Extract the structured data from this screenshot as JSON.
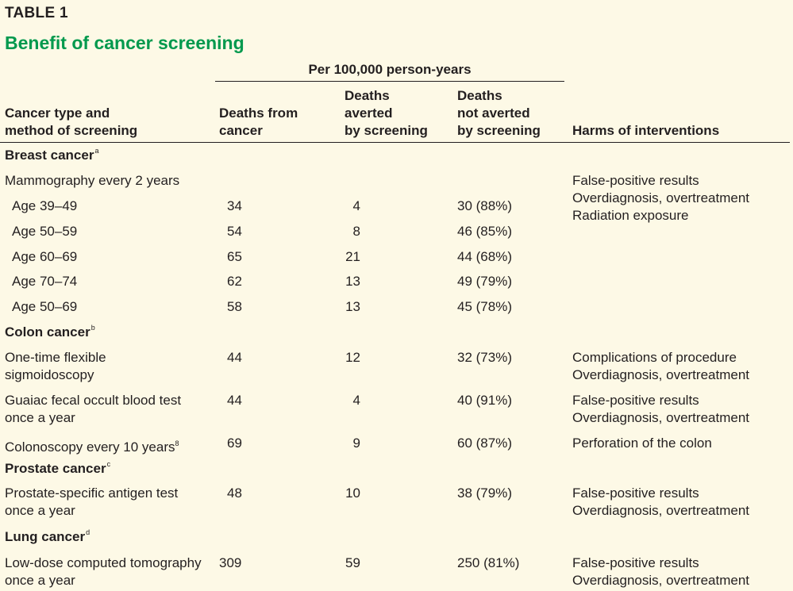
{
  "table_label": "TABLE 1",
  "title": "Benefit of cancer screening",
  "group_header": "Per 100,000 person-years",
  "headers": {
    "type": [
      "Cancer type and",
      "method of screening"
    ],
    "deaths": [
      "Deaths from",
      "cancer"
    ],
    "averted": [
      "Deaths",
      "averted",
      "by screening"
    ],
    "not_averted": [
      "Deaths",
      "not averted",
      "by screening"
    ],
    "harms": "Harms of interventions"
  },
  "sections": {
    "breast": {
      "title": "Breast cancer",
      "note": "a"
    },
    "colon": {
      "title": "Colon cancer",
      "note": "b"
    },
    "prostate": {
      "title": "Prostate cancer",
      "note": "c"
    },
    "lung": {
      "title": "Lung cancer",
      "note": "d"
    }
  },
  "breast_method": "Mammography every 2 years",
  "breast_harms": [
    "False-positive results",
    "Overdiagnosis, overtreatment",
    "Radiation exposure"
  ],
  "breast_rows": [
    {
      "label": "Age 39–49",
      "deaths": "34",
      "averted": "4",
      "not_averted": "30 (88%)"
    },
    {
      "label": "Age 50–59",
      "deaths": "54",
      "averted": "8",
      "not_averted": "46 (85%)"
    },
    {
      "label": "Age 60–69",
      "deaths": "65",
      "averted": "21",
      "not_averted": "44 (68%)"
    },
    {
      "label": "Age 70–74",
      "deaths": "62",
      "averted": "13",
      "not_averted": "49 (79%)"
    },
    {
      "label": "Age 50–69",
      "deaths": "58",
      "averted": "13",
      "not_averted": "45 (78%)"
    }
  ],
  "colon_rows": [
    {
      "label": [
        "One-time flexible",
        "sigmoidoscopy"
      ],
      "deaths": "44",
      "averted": "12",
      "not_averted": "32 (73%)",
      "harms": [
        "Complications of procedure",
        "Overdiagnosis, overtreatment"
      ]
    },
    {
      "label": [
        "Guaiac fecal occult blood test",
        "once a year"
      ],
      "deaths": "44",
      "averted": "4",
      "not_averted": "40 (91%)",
      "harms": [
        "False-positive results",
        "Overdiagnosis, overtreatment"
      ]
    },
    {
      "label": [
        "Colonoscopy every 10 years",
        "8"
      ],
      "deaths": "69",
      "averted": "9",
      "not_averted": "60 (87%)",
      "harms": [
        "Perforation of the colon"
      ]
    }
  ],
  "prostate_row": {
    "label": [
      "Prostate-specific antigen test",
      "once a year"
    ],
    "deaths": "48",
    "averted": "10",
    "not_averted": "38 (79%)",
    "harms": [
      "False-positive results",
      "Overdiagnosis, overtreatment"
    ]
  },
  "lung_row": {
    "label": [
      "Low-dose computed tomography",
      "once a year"
    ],
    "deaths": "309",
    "averted": "59",
    "not_averted": "250 (81%)",
    "harms": [
      "False-positive results",
      "Overdiagnosis, overtreatment"
    ]
  }
}
